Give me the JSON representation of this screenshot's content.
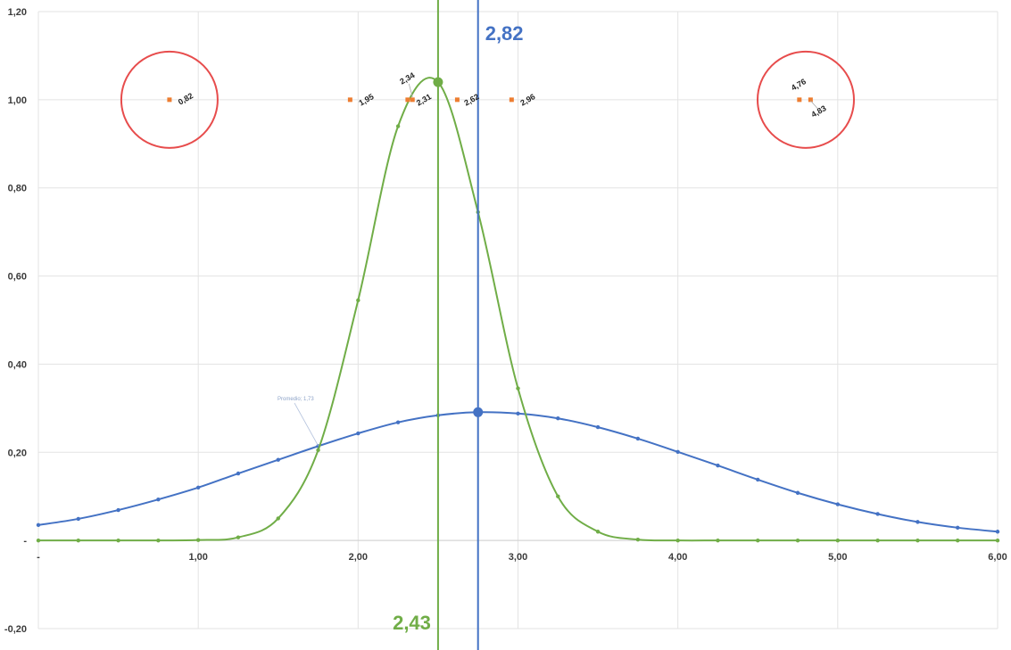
{
  "chart_data": {
    "type": "line",
    "xlim": [
      0,
      6
    ],
    "ylim": [
      -0.2,
      1.2
    ],
    "grid": true,
    "x_ticks": [
      {
        "value": 0,
        "label": "-"
      },
      {
        "value": 1,
        "label": "1,00"
      },
      {
        "value": 2,
        "label": "2,00"
      },
      {
        "value": 3,
        "label": "3,00"
      },
      {
        "value": 4,
        "label": "4,00"
      },
      {
        "value": 5,
        "label": "5,00"
      },
      {
        "value": 6,
        "label": "6,00"
      }
    ],
    "y_ticks": [
      {
        "value": -0.2,
        "label": "-0,20"
      },
      {
        "value": 0,
        "label": "-"
      },
      {
        "value": 0.2,
        "label": "0,20"
      },
      {
        "value": 0.4,
        "label": "0,40"
      },
      {
        "value": 0.6,
        "label": "0,60"
      },
      {
        "value": 0.8,
        "label": "0,80"
      },
      {
        "value": 1.0,
        "label": "1,00"
      },
      {
        "value": 1.2,
        "label": "1,20"
      }
    ],
    "series": [
      {
        "color": "#4472c4",
        "x": [
          0,
          0.25,
          0.5,
          0.75,
          1,
          1.25,
          1.5,
          1.75,
          2,
          2.25,
          2.5,
          2.75,
          3,
          3.25,
          3.5,
          3.75,
          4,
          4.25,
          4.5,
          4.75,
          5,
          5.25,
          5.5,
          5.75,
          6
        ],
        "y": [
          0.035,
          0.049,
          0.069,
          0.093,
          0.12,
          0.152,
          0.183,
          0.214,
          0.243,
          0.268,
          0.284,
          0.291,
          0.288,
          0.277,
          0.257,
          0.231,
          0.201,
          0.17,
          0.138,
          0.108,
          0.082,
          0.06,
          0.042,
          0.029,
          0.02
        ],
        "peak": {
          "x": 2.75,
          "y": 0.291
        }
      },
      {
        "color": "#70ad47",
        "x": [
          0,
          0.25,
          0.5,
          0.75,
          1,
          1.25,
          1.5,
          1.75,
          2,
          2.25,
          2.5,
          2.75,
          3,
          3.25,
          3.5,
          3.75,
          4,
          4.25,
          4.5,
          4.75,
          5,
          5.25,
          5.5,
          5.75,
          6
        ],
        "y": [
          0,
          0,
          0,
          0,
          0.001,
          0.007,
          0.05,
          0.205,
          0.545,
          0.94,
          1.04,
          0.745,
          0.345,
          0.1,
          0.02,
          0.002,
          0,
          0,
          0,
          0,
          0,
          0,
          0,
          0,
          0
        ],
        "peak": {
          "x": 2.5,
          "y": 1.04
        }
      }
    ],
    "observations": {
      "color": "#ed7d31",
      "points": [
        {
          "x": 0.82,
          "y": 1.0,
          "label": "0,82"
        },
        {
          "x": 1.95,
          "y": 1.0,
          "label": "1,95"
        },
        {
          "x": 2.31,
          "y": 1.0,
          "label": "2,31"
        },
        {
          "x": 2.34,
          "y": 1.0,
          "label": "2,34"
        },
        {
          "x": 2.62,
          "y": 1.0,
          "label": "2,62"
        },
        {
          "x": 2.96,
          "y": 1.0,
          "label": "2,96"
        },
        {
          "x": 4.76,
          "y": 1.0,
          "label": "4,76"
        },
        {
          "x": 4.83,
          "y": 1.0,
          "label": "4,83"
        }
      ]
    },
    "vertical_lines": [
      {
        "x": 2.5,
        "color": "#70ad47",
        "label": "2,43"
      },
      {
        "x": 2.75,
        "color": "#4472c4",
        "label": "2,82"
      }
    ],
    "circles": [
      {
        "x": 0.82,
        "y": 1.0,
        "color": "#e74c4c"
      },
      {
        "x": 4.8,
        "y": 1.0,
        "color": "#e74c4c"
      }
    ],
    "annotation": {
      "text": "Promedio; 1,73",
      "x": 1.75,
      "y": 0.215
    }
  }
}
